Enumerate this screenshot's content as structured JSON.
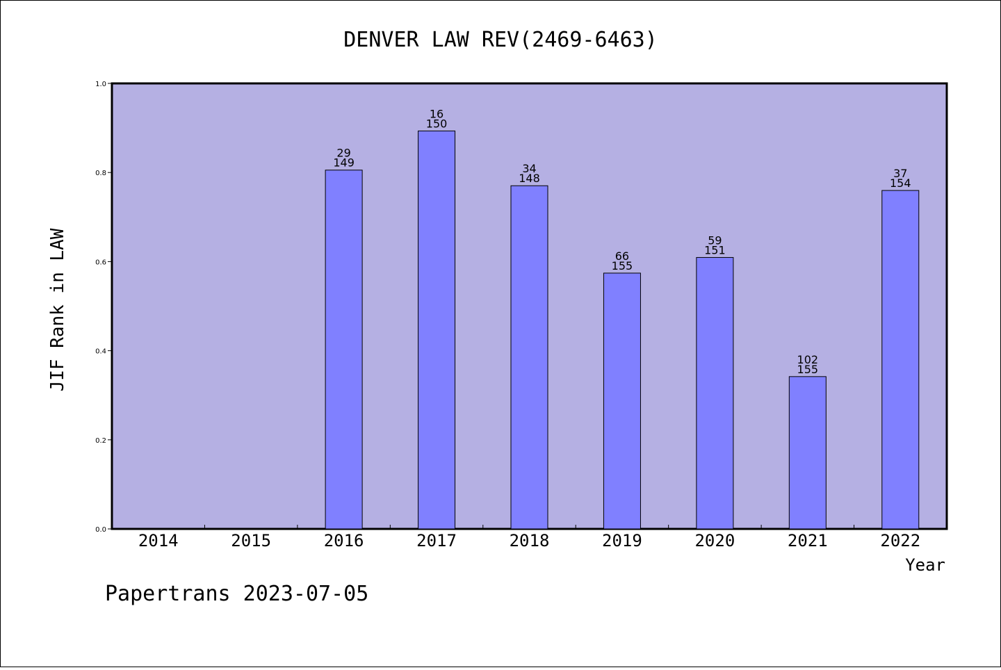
{
  "chart_data": {
    "type": "bar",
    "title": "DENVER LAW REV(2469-6463)",
    "xlabel": "Year",
    "ylabel": "JIF Rank in LAW",
    "ylim": [
      0,
      1.0
    ],
    "yticks": [
      "0.0",
      "0.2",
      "0.4",
      "0.6",
      "0.8",
      "1.0"
    ],
    "categories": [
      "2014",
      "2015",
      "2016",
      "2017",
      "2018",
      "2019",
      "2020",
      "2021",
      "2022"
    ],
    "values": [
      null,
      null,
      0.8054,
      0.8933,
      0.7703,
      0.5742,
      0.6093,
      0.3419,
      0.7597
    ],
    "rank": [
      "",
      "",
      "29",
      "16",
      "34",
      "66",
      "59",
      "102",
      "37"
    ],
    "total": [
      "",
      "",
      "149",
      "150",
      "148",
      "155",
      "151",
      "155",
      "154"
    ],
    "grid": false,
    "colors": {
      "plot_bg": "#b5b0e3",
      "bar": "#8080ff",
      "bar_edge": "#000000"
    }
  },
  "footer": "Papertrans 2023-07-05"
}
